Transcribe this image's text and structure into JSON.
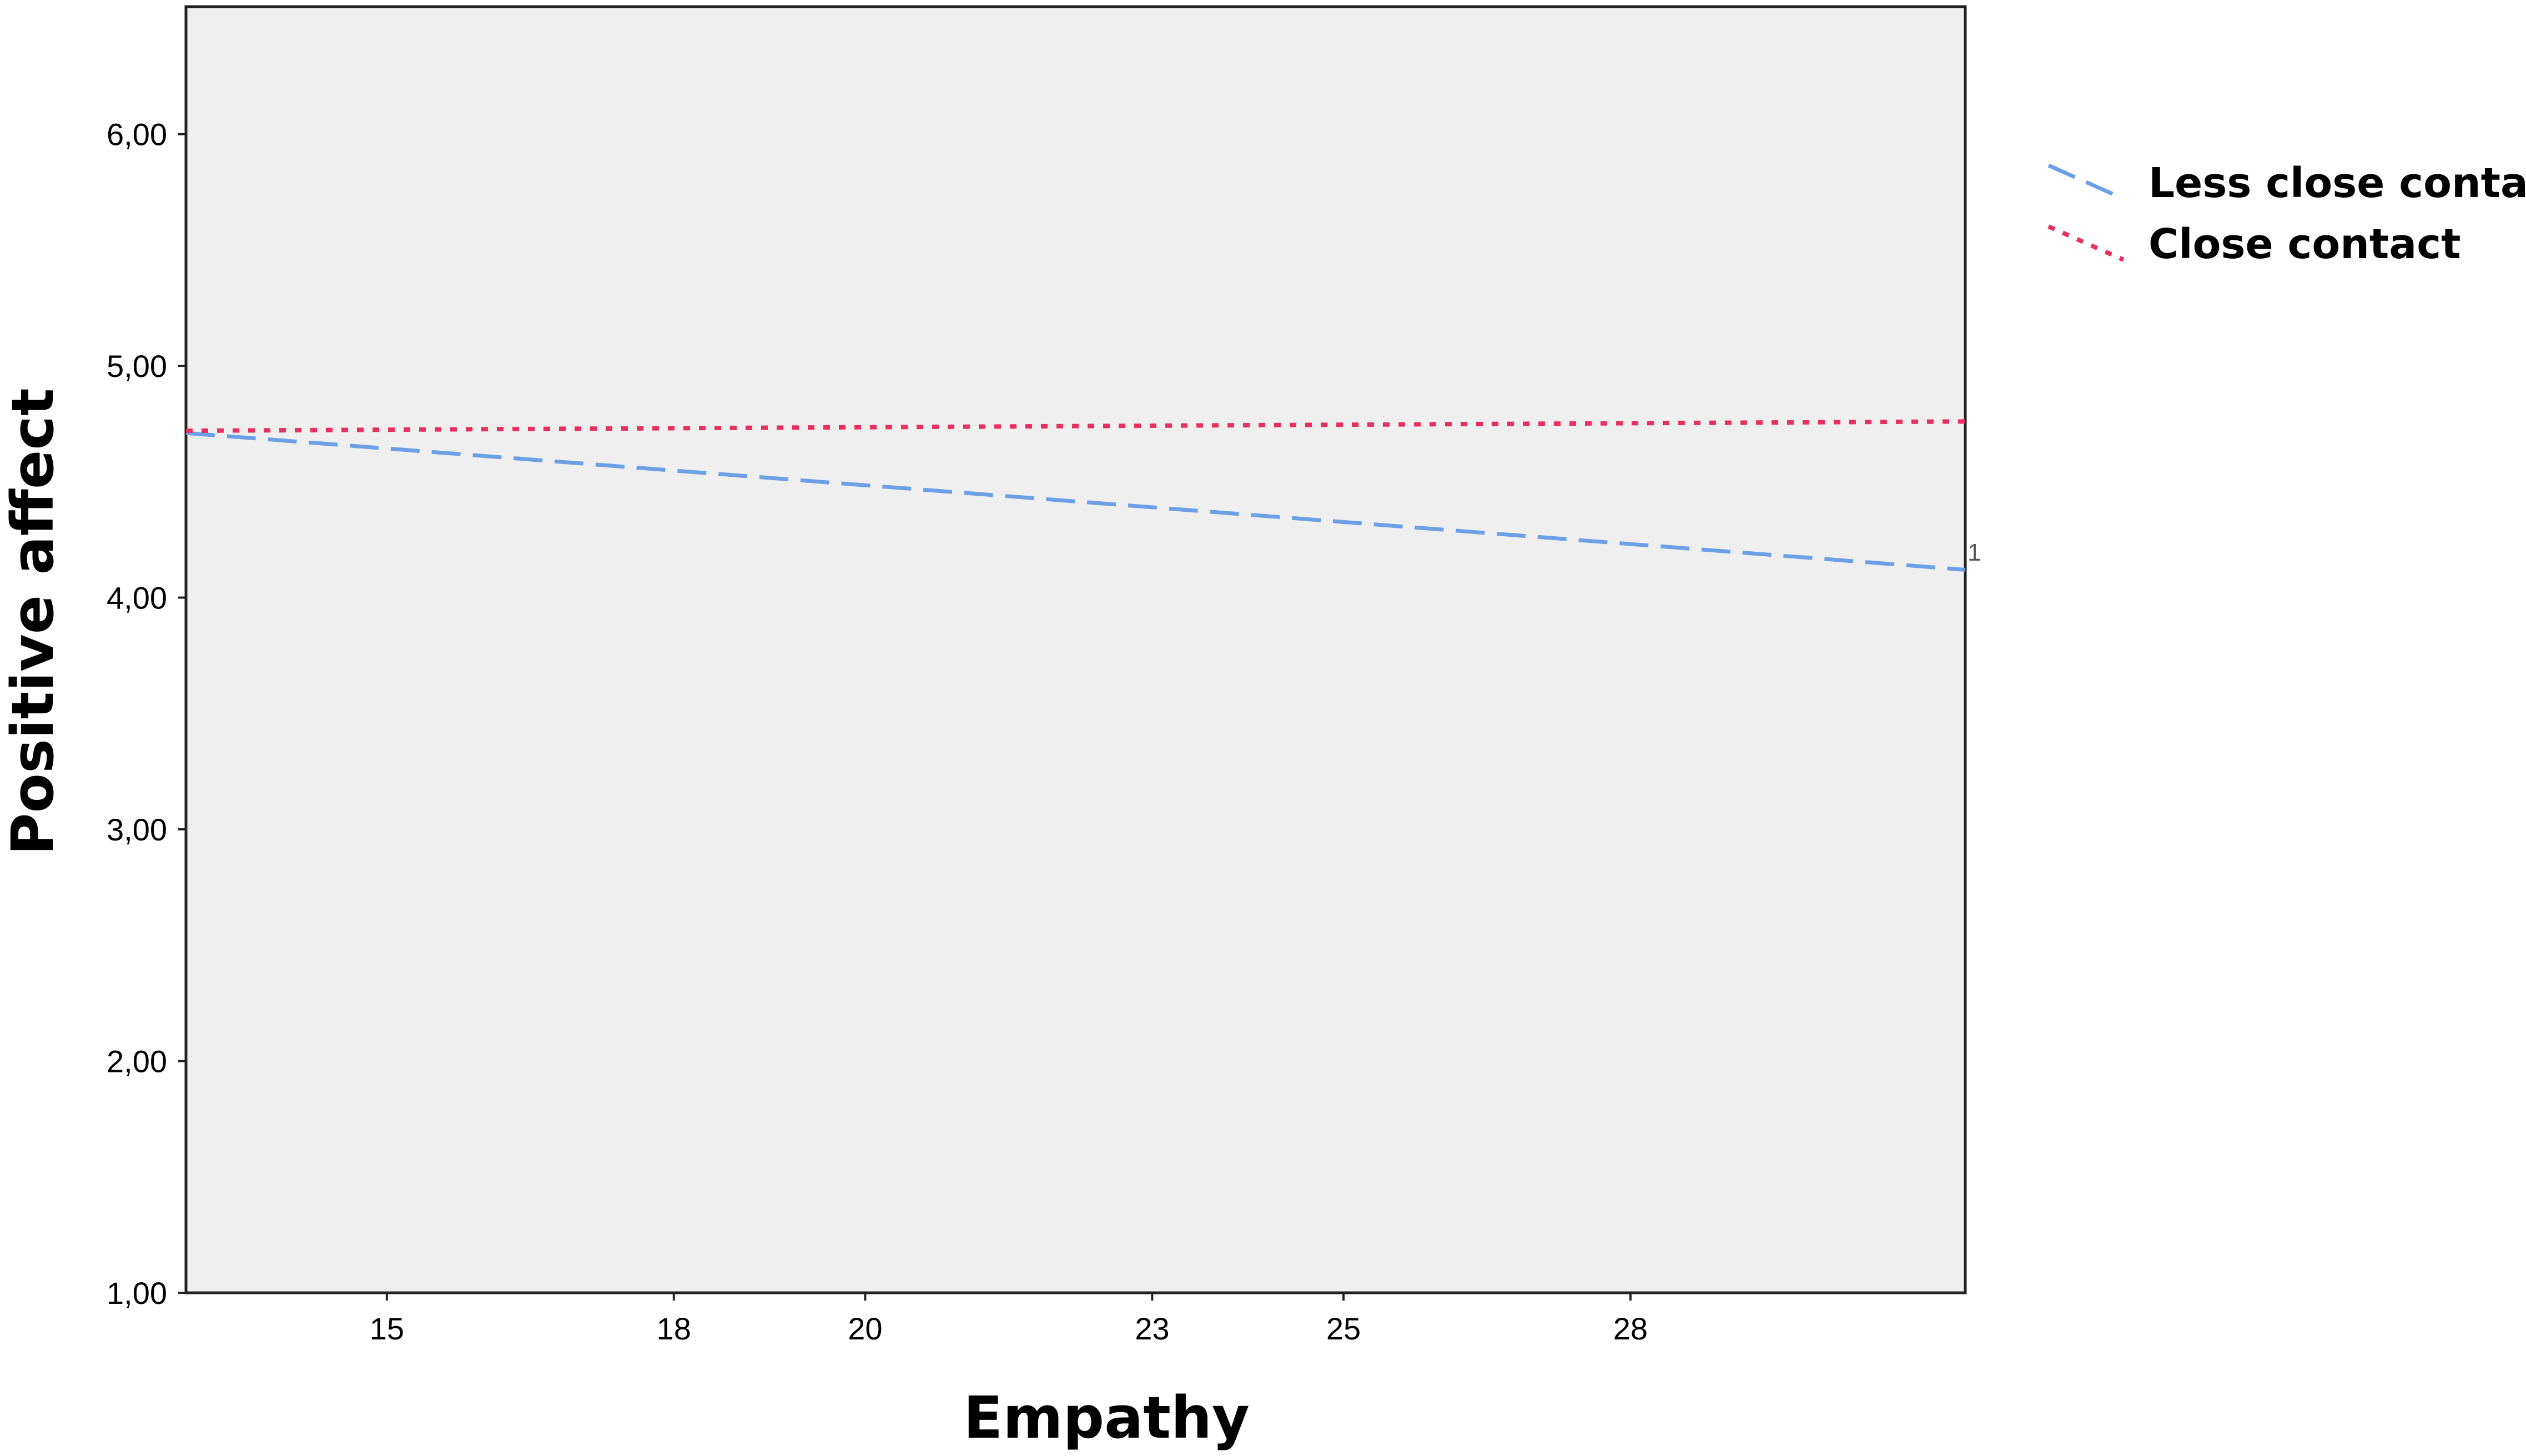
{
  "chart_data": {
    "type": "line",
    "title": "",
    "xlabel": "Empathy",
    "ylabel": "Positive affect",
    "x_ticks": [
      15,
      18,
      20,
      23,
      25,
      28
    ],
    "y_ticks": [
      "1,00",
      "2,00",
      "3,00",
      "4,00",
      "5,00",
      "6,00"
    ],
    "y_tick_values": [
      1,
      2,
      3,
      4,
      5,
      6
    ],
    "xlim": [
      12.9,
      31.5
    ],
    "ylim": [
      1,
      6.55
    ],
    "grid": false,
    "legend_position": "right",
    "plot_background": "#efefef",
    "line_marker_label": "1",
    "series": [
      {
        "name": "Less close contact",
        "x": [
          12.9,
          31.5
        ],
        "y": [
          4.71,
          4.12
        ],
        "color": "#6b9fe6",
        "style": "dashed"
      },
      {
        "name": "Close contact",
        "x": [
          12.9,
          31.5
        ],
        "y": [
          4.72,
          4.76
        ],
        "color": "#e8305e",
        "style": "dotted"
      }
    ]
  }
}
